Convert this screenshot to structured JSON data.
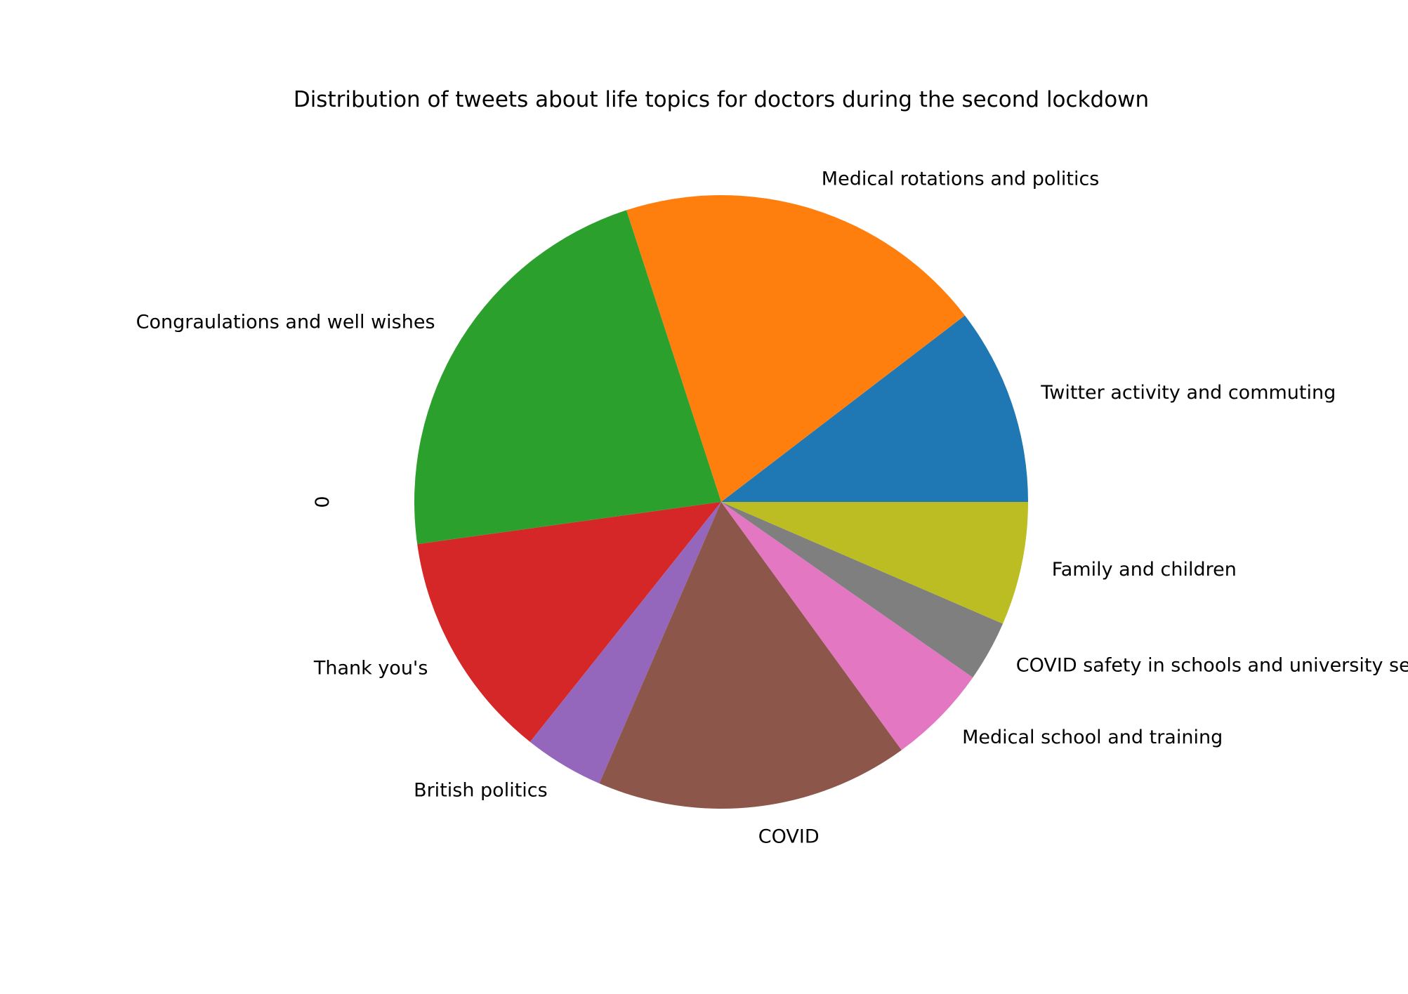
{
  "chart_data": {
    "type": "pie",
    "title": "Distribution of tweets about life topics for doctors during the second lockdown",
    "ylabel": "0",
    "start_angle_deg": 0,
    "direction": "counterclockwise",
    "categories": [
      "Twitter activity and commuting",
      "Medical rotations and politics",
      "Congraulations and well wishes",
      "Thank you's",
      "British politics",
      "COVID",
      "Medical school and training",
      "COVID safety in schools and university settings",
      "Family and children"
    ],
    "values": [
      10.4,
      19.6,
      22.2,
      12.1,
      4.2,
      16.5,
      5.3,
      3.2,
      6.5
    ],
    "colors": [
      "#1f77b4",
      "#ff7f0e",
      "#2ca02c",
      "#d62728",
      "#9467bd",
      "#8c564b",
      "#e377c2",
      "#7f7f7f",
      "#bcbd22"
    ]
  }
}
